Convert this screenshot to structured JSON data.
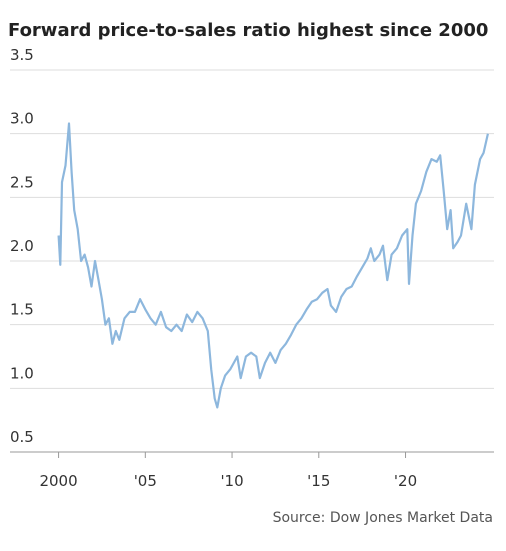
{
  "chart_data": {
    "type": "line",
    "title": "Forward price-to-sales ratio highest since 2000",
    "source": "Source: Dow Jones Market Data",
    "x": [
      2000.0,
      2000.1,
      2000.2,
      2000.4,
      2000.6,
      2000.75,
      2000.9,
      2001.1,
      2001.3,
      2001.5,
      2001.7,
      2001.9,
      2002.1,
      2002.3,
      2002.5,
      2002.7,
      2002.9,
      2003.1,
      2003.3,
      2003.5,
      2003.8,
      2004.1,
      2004.4,
      2004.7,
      2005.0,
      2005.3,
      2005.6,
      2005.9,
      2006.2,
      2006.5,
      2006.8,
      2007.1,
      2007.4,
      2007.7,
      2008.0,
      2008.3,
      2008.6,
      2008.8,
      2009.0,
      2009.15,
      2009.35,
      2009.6,
      2009.9,
      2010.1,
      2010.3,
      2010.5,
      2010.8,
      2011.1,
      2011.4,
      2011.6,
      2011.9,
      2012.2,
      2012.5,
      2012.8,
      2013.1,
      2013.4,
      2013.7,
      2014.0,
      2014.3,
      2014.6,
      2014.9,
      2015.2,
      2015.5,
      2015.7,
      2016.0,
      2016.3,
      2016.6,
      2016.9,
      2017.2,
      2017.5,
      2017.8,
      2018.0,
      2018.2,
      2018.5,
      2018.7,
      2018.95,
      2019.2,
      2019.5,
      2019.8,
      2020.1,
      2020.2,
      2020.4,
      2020.6,
      2020.9,
      2021.2,
      2021.5,
      2021.8,
      2022.0,
      2022.2,
      2022.4,
      2022.6,
      2022.75,
      2023.0,
      2023.2,
      2023.5,
      2023.8,
      2024.0,
      2024.3,
      2024.5,
      2024.75
    ],
    "series": [
      {
        "name": "Forward price-to-sales ratio",
        "color": "#8db7dd",
        "values": [
          2.2,
          1.97,
          2.62,
          2.75,
          3.08,
          2.7,
          2.4,
          2.25,
          2.0,
          2.05,
          1.95,
          1.8,
          2.0,
          1.85,
          1.7,
          1.5,
          1.55,
          1.35,
          1.45,
          1.38,
          1.55,
          1.6,
          1.6,
          1.7,
          1.62,
          1.55,
          1.5,
          1.6,
          1.48,
          1.45,
          1.5,
          1.45,
          1.58,
          1.52,
          1.6,
          1.55,
          1.45,
          1.15,
          0.92,
          0.85,
          1.0,
          1.1,
          1.15,
          1.2,
          1.25,
          1.08,
          1.25,
          1.28,
          1.25,
          1.08,
          1.2,
          1.28,
          1.2,
          1.3,
          1.35,
          1.42,
          1.5,
          1.55,
          1.62,
          1.68,
          1.7,
          1.75,
          1.78,
          1.65,
          1.6,
          1.72,
          1.78,
          1.8,
          1.88,
          1.95,
          2.02,
          2.1,
          2.0,
          2.05,
          2.12,
          1.85,
          2.05,
          2.1,
          2.2,
          2.25,
          1.82,
          2.2,
          2.45,
          2.55,
          2.7,
          2.8,
          2.78,
          2.83,
          2.55,
          2.25,
          2.4,
          2.1,
          2.15,
          2.2,
          2.45,
          2.25,
          2.6,
          2.8,
          2.85,
          3.0
        ]
      }
    ],
    "xlim": [
      1997.2,
      2025.1
    ],
    "xticks": [
      2000,
      {
        "value": 2005,
        "label": "'05"
      },
      {
        "value": 2010,
        "label": "'10"
      },
      {
        "value": 2015,
        "label": "'15"
      },
      {
        "value": 2020,
        "label": "'20"
      }
    ],
    "ylim": [
      0.5,
      3.5
    ],
    "yticks": [
      0.5,
      {
        "value": 1,
        "label": "1.0"
      },
      1.5,
      {
        "value": 2,
        "label": "2.0"
      },
      2.5,
      {
        "value": 3,
        "label": "3.0"
      },
      3.5
    ],
    "grid": true
  }
}
